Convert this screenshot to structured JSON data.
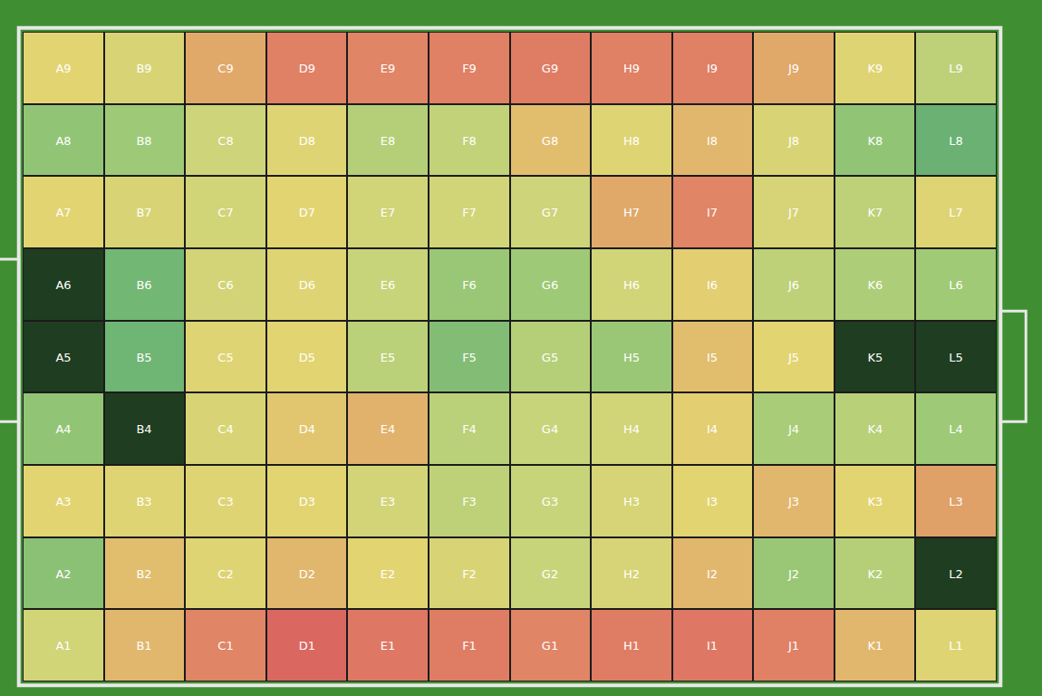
{
  "chart_data": {
    "type": "heatmap",
    "tick_labels": false,
    "color_range": [
      0,
      100
    ],
    "cell_labels": [
      [
        "A9",
        "B9",
        "C9",
        "D9",
        "E9",
        "F9",
        "G9",
        "H9",
        "I9",
        "J9",
        "K9",
        "L9"
      ],
      [
        "A8",
        "B8",
        "C8",
        "D8",
        "E8",
        "F8",
        "G8",
        "H8",
        "I8",
        "J8",
        "K8",
        "L8"
      ],
      [
        "A7",
        "B7",
        "C7",
        "D7",
        "E7",
        "F7",
        "G7",
        "H7",
        "I7",
        "J7",
        "K7",
        "L7"
      ],
      [
        "A6",
        "B6",
        "C6",
        "D6",
        "E6",
        "F6",
        "G6",
        "H6",
        "I6",
        "J6",
        "K6",
        "L6"
      ],
      [
        "A5",
        "B5",
        "C5",
        "D5",
        "E5",
        "F5",
        "G5",
        "H5",
        "I5",
        "J5",
        "K5",
        "L5"
      ],
      [
        "A4",
        "B4",
        "C4",
        "D4",
        "E4",
        "F4",
        "G4",
        "H4",
        "I4",
        "J4",
        "K4",
        "L4"
      ],
      [
        "A3",
        "B3",
        "C3",
        "D3",
        "E3",
        "F3",
        "G3",
        "H3",
        "I3",
        "J3",
        "K3",
        "L3"
      ],
      [
        "A2",
        "B2",
        "C2",
        "D2",
        "E2",
        "F2",
        "G2",
        "H2",
        "I2",
        "J2",
        "K2",
        "L2"
      ],
      [
        "A1",
        "B1",
        "C1",
        "D1",
        "E1",
        "F1",
        "G1",
        "H1",
        "I1",
        "J1",
        "K1",
        "L1"
      ]
    ],
    "cells": [
      [
        50,
        55,
        35,
        20,
        22,
        20,
        18,
        20,
        20,
        35,
        52,
        65
      ],
      [
        78,
        75,
        60,
        52,
        68,
        64,
        42,
        52,
        40,
        55,
        78,
        88
      ],
      [
        50,
        55,
        58,
        50,
        58,
        58,
        60,
        35,
        22,
        56,
        65,
        52
      ],
      [
        100,
        86,
        57,
        52,
        62,
        76,
        75,
        58,
        48,
        65,
        70,
        74
      ],
      [
        100,
        87,
        52,
        50,
        66,
        82,
        68,
        76,
        42,
        50,
        100,
        100
      ],
      [
        78,
        100,
        55,
        45,
        38,
        66,
        62,
        58,
        48,
        72,
        67,
        75
      ],
      [
        50,
        52,
        52,
        50,
        57,
        65,
        62,
        56,
        50,
        40,
        50,
        32
      ],
      [
        80,
        42,
        52,
        40,
        50,
        55,
        62,
        56,
        40,
        76,
        68,
        100
      ],
      [
        58,
        40,
        22,
        5,
        15,
        18,
        22,
        18,
        15,
        20,
        40,
        52
      ]
    ]
  }
}
